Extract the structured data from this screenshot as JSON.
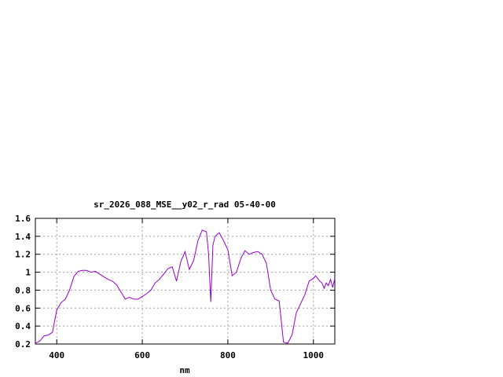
{
  "chart_data": {
    "type": "line",
    "title": "sr_2026_088_MSE__y02_r_rad 05-40-00",
    "xlabel": "nm",
    "ylabel": "",
    "xlim": [
      350,
      1050
    ],
    "ylim": [
      0.2,
      1.6
    ],
    "xticks": [
      400,
      600,
      800,
      1000
    ],
    "xtick_labels": [
      "400",
      "600",
      "800",
      "1000"
    ],
    "yticks": [
      0.2,
      0.4,
      0.6,
      0.8,
      1.0,
      1.2,
      1.4,
      1.6
    ],
    "ytick_labels": [
      "0.2",
      "0.4",
      "0.6",
      "0.8",
      "1",
      "1.2",
      "1.4",
      "1.6"
    ],
    "grid": true,
    "line_color": "#9400d3",
    "series": [
      {
        "x": [
          350,
          360,
          370,
          380,
          390,
          400,
          410,
          420,
          430,
          440,
          450,
          460,
          470,
          480,
          490,
          500,
          510,
          520,
          530,
          540,
          550,
          560,
          570,
          580,
          590,
          600,
          610,
          620,
          630,
          640,
          650,
          660,
          670,
          680,
          690,
          700,
          710,
          720,
          730,
          740,
          750,
          755,
          760,
          765,
          770,
          780,
          790,
          800,
          810,
          820,
          830,
          840,
          850,
          860,
          870,
          880,
          890,
          900,
          910,
          920,
          925,
          930,
          940,
          950,
          960,
          970,
          980,
          990,
          1000,
          1005,
          1010,
          1015,
          1020,
          1025,
          1030,
          1035,
          1040,
          1045,
          1050
        ],
        "y": [
          0.21,
          0.23,
          0.29,
          0.3,
          0.33,
          0.58,
          0.66,
          0.7,
          0.8,
          0.95,
          1.01,
          1.02,
          1.02,
          1.0,
          1.01,
          0.98,
          0.95,
          0.92,
          0.9,
          0.86,
          0.78,
          0.7,
          0.72,
          0.7,
          0.7,
          0.73,
          0.76,
          0.8,
          0.88,
          0.92,
          0.98,
          1.04,
          1.06,
          0.9,
          1.12,
          1.23,
          1.03,
          1.13,
          1.35,
          1.47,
          1.45,
          1.2,
          0.67,
          1.3,
          1.4,
          1.44,
          1.35,
          1.25,
          0.96,
          1.0,
          1.15,
          1.24,
          1.2,
          1.22,
          1.23,
          1.2,
          1.1,
          0.8,
          0.7,
          0.68,
          0.45,
          0.22,
          0.21,
          0.3,
          0.55,
          0.65,
          0.75,
          0.9,
          0.93,
          0.96,
          0.93,
          0.9,
          0.88,
          0.82,
          0.88,
          0.85,
          0.92,
          0.83,
          0.93
        ]
      }
    ]
  }
}
